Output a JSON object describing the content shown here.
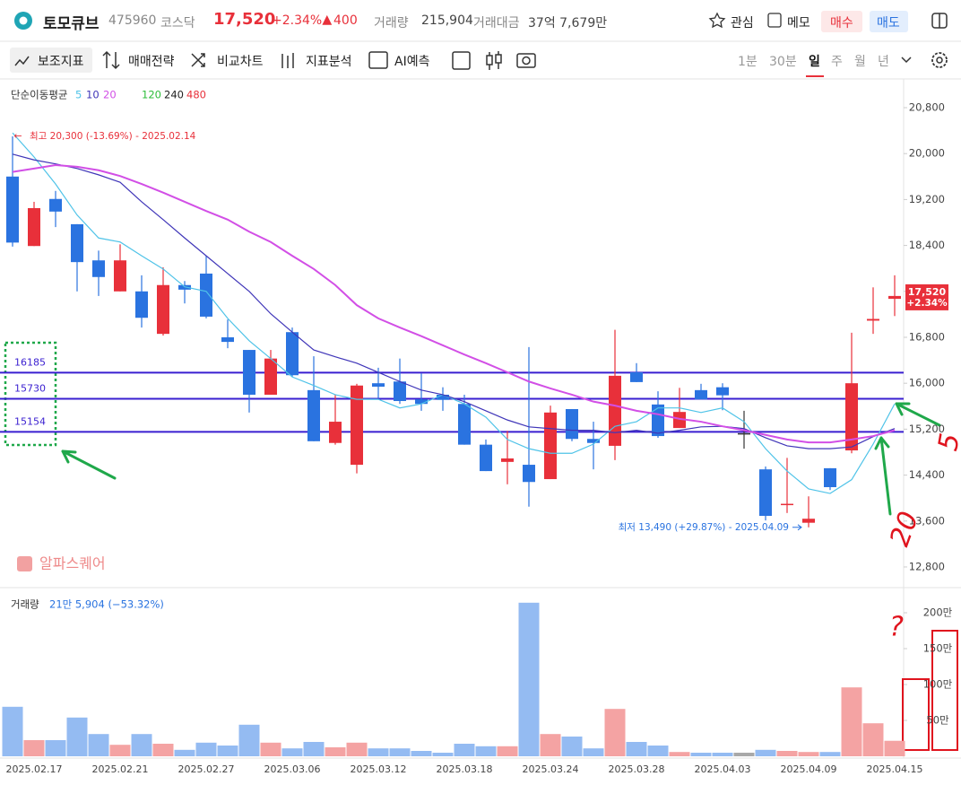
{
  "header": {
    "name": "토모큐브",
    "code": "475960",
    "market": "코스닥",
    "price": "17,520",
    "change_rate": "+2.34%",
    "change": "400",
    "volume_label": "거래량",
    "volume": "215,904",
    "amount_label": "거래대금",
    "amount": "37억 7,679만",
    "buttons": [
      "관심",
      "메모",
      "매수",
      "매도"
    ]
  },
  "toolbar": {
    "tools": [
      "보조지표",
      "매매전략",
      "비교차트",
      "지표분석",
      "AI예측"
    ],
    "periods": [
      "1분",
      "30분",
      "일",
      "주",
      "월",
      "년"
    ],
    "selected_period": "일"
  },
  "chart_data": {
    "type": "candlestick",
    "categories": [
      null,
      "2025.02.17",
      null,
      null,
      null,
      "2025.02.21",
      null,
      null,
      null,
      "2025.02.27",
      null,
      null,
      null,
      "2025.03.06",
      null,
      null,
      null,
      "2025.03.12",
      null,
      null,
      null,
      "2025.03.18",
      null,
      null,
      null,
      "2025.03.24",
      null,
      null,
      null,
      "2025.03.28",
      null,
      null,
      null,
      "2025.04.03",
      null,
      null,
      null,
      "2025.04.09",
      null,
      null,
      null,
      "2025.04.15"
    ],
    "open": [
      19600,
      18390,
      19210,
      18770,
      18140,
      17600,
      17600,
      16860,
      17710,
      17910,
      16800,
      16580,
      15800,
      16890,
      15880,
      14960,
      14580,
      16000,
      16030,
      15720,
      15800,
      15640,
      14930,
      14630,
      14580,
      14330,
      15550,
      15030,
      14910,
      16190,
      15630,
      15220,
      15880,
      15930,
      15130,
      14500,
      13880,
      13570,
      14520,
      14830,
      17090,
      17470
    ],
    "high": [
      20300,
      19160,
      19350,
      18770,
      18310,
      18420,
      17880,
      18020,
      17780,
      18220,
      17110,
      16580,
      16580,
      16970,
      16470,
      15800,
      15990,
      16270,
      16430,
      16170,
      15930,
      15800,
      15020,
      15170,
      16630,
      15610,
      15550,
      15330,
      16930,
      16350,
      15860,
      15920,
      15990,
      16000,
      15520,
      14550,
      14700,
      14030,
      14520,
      16880,
      17670,
      17880
    ],
    "low": [
      18380,
      18390,
      18720,
      17600,
      17520,
      17600,
      16970,
      16830,
      17390,
      17130,
      16610,
      15490,
      15800,
      16110,
      14990,
      14930,
      14430,
      15740,
      15640,
      15520,
      15520,
      14930,
      14470,
      14240,
      13850,
      14330,
      14990,
      14500,
      14660,
      16020,
      15050,
      15220,
      15720,
      15530,
      14860,
      13610,
      13740,
      13490,
      14140,
      14780,
      16860,
      17170
    ],
    "close": [
      18450,
      19050,
      18990,
      18110,
      17850,
      18140,
      17140,
      17710,
      17630,
      17160,
      16720,
      15800,
      16430,
      16140,
      14990,
      15330,
      15960,
      15940,
      15690,
      15640,
      15710,
      14930,
      14470,
      14690,
      14280,
      15490,
      15030,
      14960,
      16130,
      16020,
      15080,
      15500,
      15720,
      15790,
      15130,
      13690,
      13900,
      13640,
      14190,
      16000,
      17120,
      17520
    ],
    "up_color": "#e8303a",
    "down_color": "#2a73e0",
    "flat_color": "#333333",
    "ylim": [
      12440,
      21300
    ],
    "yticks": [
      {
        "value": 12800,
        "label": "12,800"
      },
      {
        "value": 13600,
        "label": "13,600"
      },
      {
        "value": 14400,
        "label": "14,400"
      },
      {
        "value": 15200,
        "label": "15,200"
      },
      {
        "value": 16000,
        "label": "16,000"
      },
      {
        "value": 16800,
        "label": "16,800"
      },
      {
        "value": 17600,
        "label": "17,600"
      },
      {
        "value": 18400,
        "label": "18,400"
      },
      {
        "value": 19200,
        "label": "19,200"
      },
      {
        "value": 20000,
        "label": "20,000"
      },
      {
        "value": 20800,
        "label": "20,800"
      }
    ],
    "ma_label": "단순이동평균",
    "ma": [
      {
        "name": "5",
        "color": "#4fc3e8",
        "values": [
          20360,
          19940,
          19470,
          18930,
          18530,
          18460,
          18220,
          17990,
          17680,
          17600,
          17130,
          16740,
          16430,
          16110,
          15960,
          15800,
          15720,
          15720,
          15570,
          15640,
          15800,
          15640,
          15410,
          15020,
          14860,
          14780,
          14780,
          14940,
          15250,
          15330,
          15570,
          15570,
          15490,
          15570,
          15330,
          14860,
          14470,
          14160,
          14080,
          14320,
          14940,
          15640
        ]
      },
      {
        "name": "10",
        "color": "#3f35b8",
        "values": [
          19990,
          19890,
          19820,
          19740,
          19630,
          19500,
          19160,
          18850,
          18530,
          18220,
          17910,
          17600,
          17210,
          16890,
          16580,
          16460,
          16350,
          16190,
          16030,
          15880,
          15800,
          15680,
          15520,
          15360,
          15240,
          15210,
          15180,
          15180,
          15140,
          15180,
          15130,
          15180,
          15240,
          15250,
          15210,
          15050,
          14910,
          14860,
          14860,
          14890,
          15070,
          15210
        ]
      },
      {
        "name": "20",
        "color": "#d24fe6",
        "values": [
          19680,
          19740,
          19800,
          19770,
          19710,
          19610,
          19470,
          19320,
          19160,
          19000,
          18850,
          18640,
          18460,
          18220,
          17990,
          17710,
          17360,
          17130,
          16970,
          16820,
          16660,
          16500,
          16350,
          16190,
          16030,
          15910,
          15800,
          15680,
          15610,
          15520,
          15460,
          15380,
          15330,
          15250,
          15180,
          15100,
          15020,
          14970,
          14970,
          15020,
          15080,
          15180
        ]
      }
    ],
    "ma_extra": [
      {
        "name": "120",
        "color": "#2dbd3a"
      },
      {
        "name": "240",
        "color": "#222222"
      },
      {
        "name": "480",
        "color": "#e8303a"
      }
    ],
    "hlines": [
      16185,
      15730,
      15154
    ],
    "hline_color": "#3a1fd0",
    "high_note": "최고 20,300 (-13.69%) - 2025.02.14",
    "low_note": "최저 13,490 (+29.87%) - 2025.04.09",
    "price_tag": {
      "value": 17520,
      "label": "17,520",
      "change": "+2.34%"
    },
    "watermark": "알파스퀘어",
    "volume_label": "거래량",
    "volume_summary": "21만 5,904 (−53.32%)",
    "volume": [
      690000,
      225000,
      225000,
      540000,
      310000,
      160000,
      310000,
      175000,
      90000,
      190000,
      150000,
      440000,
      190000,
      110000,
      200000,
      125000,
      190000,
      110000,
      110000,
      75000,
      50000,
      175000,
      140000,
      140000,
      2140000,
      310000,
      275000,
      110000,
      660000,
      200000,
      150000,
      60000,
      50000,
      50000,
      50000,
      90000,
      75000,
      60000,
      60000,
      960000,
      460000,
      215904
    ],
    "volume_up_color": "#f4a3a3",
    "volume_down_color": "#94bbf2",
    "volume_flat_color": "#a8a8a8",
    "vol_ylim": [
      0,
      2350000
    ],
    "vol_yticks": [
      {
        "value": 500000,
        "label": "50만"
      },
      {
        "value": 1000000,
        "label": "100만"
      },
      {
        "value": 1500000,
        "label": "150만"
      },
      {
        "value": 2000000,
        "label": "200만"
      }
    ],
    "handwritten": [
      "5",
      "20",
      "?"
    ]
  }
}
